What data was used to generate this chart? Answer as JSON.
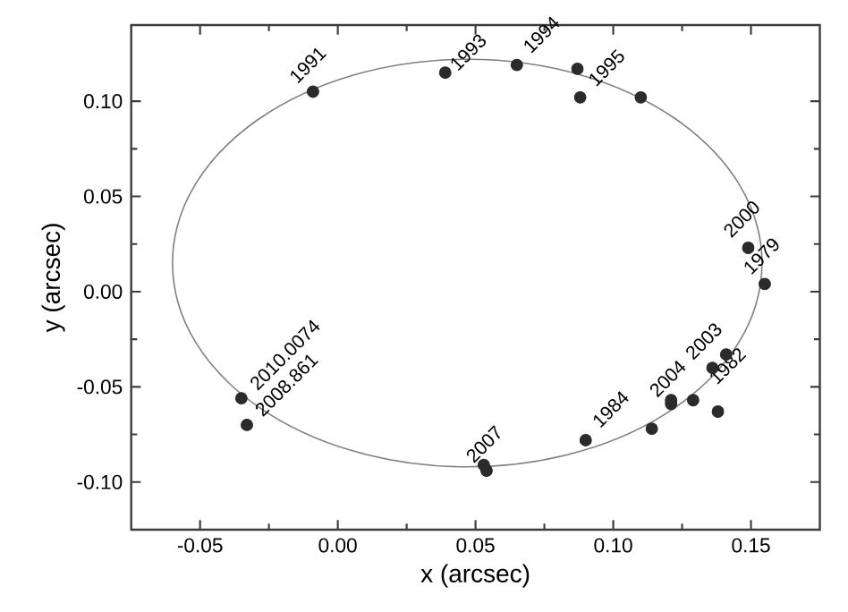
{
  "chart_data": {
    "type": "scatter",
    "xlabel": "x (arcsec)",
    "ylabel": "y (arcsec)",
    "xlim": [
      -0.075,
      0.175
    ],
    "ylim": [
      -0.125,
      0.14
    ],
    "xticks": [
      {
        "value": -0.05,
        "label": "-0.05"
      },
      {
        "value": 0,
        "label": "0.00"
      },
      {
        "value": 0.05,
        "label": "0.05"
      },
      {
        "value": 0.1,
        "label": "0.10"
      },
      {
        "value": 0.15,
        "label": "0.15"
      }
    ],
    "yticks": [
      {
        "value": -0.1,
        "label": "-0.10"
      },
      {
        "value": -0.05,
        "label": "-0.05"
      },
      {
        "value": 0,
        "label": "0.00"
      },
      {
        "value": 0.05,
        "label": "0.05"
      },
      {
        "value": 0.1,
        "label": "0.10"
      }
    ],
    "marker": "circle",
    "series": [
      {
        "color": "#2b2b2b",
        "x": [
          -0.009,
          0.039,
          0.065,
          0.087,
          0.088,
          0.11,
          0.149,
          0.155,
          -0.035,
          -0.033,
          0.053,
          0.054,
          0.09,
          0.114,
          0.121,
          0.121,
          0.129,
          0.136,
          0.141,
          0.138
        ],
        "values": [
          0.105,
          0.115,
          0.119,
          0.117,
          0.102,
          0.102,
          0.023,
          0.004,
          -0.056,
          -0.07,
          -0.091,
          -0.094,
          -0.078,
          -0.072,
          -0.059,
          -0.057,
          -0.057,
          -0.04,
          -0.033,
          -0.063
        ]
      }
    ],
    "annotations": [
      {
        "text": "1991",
        "x": -0.009,
        "y": 0.105
      },
      {
        "text": "1993",
        "x": 0.039,
        "y": 0.115
      },
      {
        "text": "1994",
        "x": 0.065,
        "y": 0.119
      },
      {
        "text": "1995",
        "x": 0.088,
        "y": 0.102
      },
      {
        "text": "2000",
        "x": 0.149,
        "y": 0.023
      },
      {
        "text": "1979",
        "x": 0.155,
        "y": 0.004
      },
      {
        "text": "2010.0074",
        "x": -0.035,
        "y": -0.056
      },
      {
        "text": "2008.861",
        "x": -0.033,
        "y": -0.07
      },
      {
        "text": "2007",
        "x": 0.053,
        "y": -0.091
      },
      {
        "text": "1984",
        "x": 0.09,
        "y": -0.078
      },
      {
        "text": "2004",
        "x": 0.121,
        "y": -0.059
      },
      {
        "text": "2003",
        "x": 0.136,
        "y": -0.04
      },
      {
        "text": "1982",
        "x": 0.129,
        "y": -0.057
      }
    ]
  }
}
